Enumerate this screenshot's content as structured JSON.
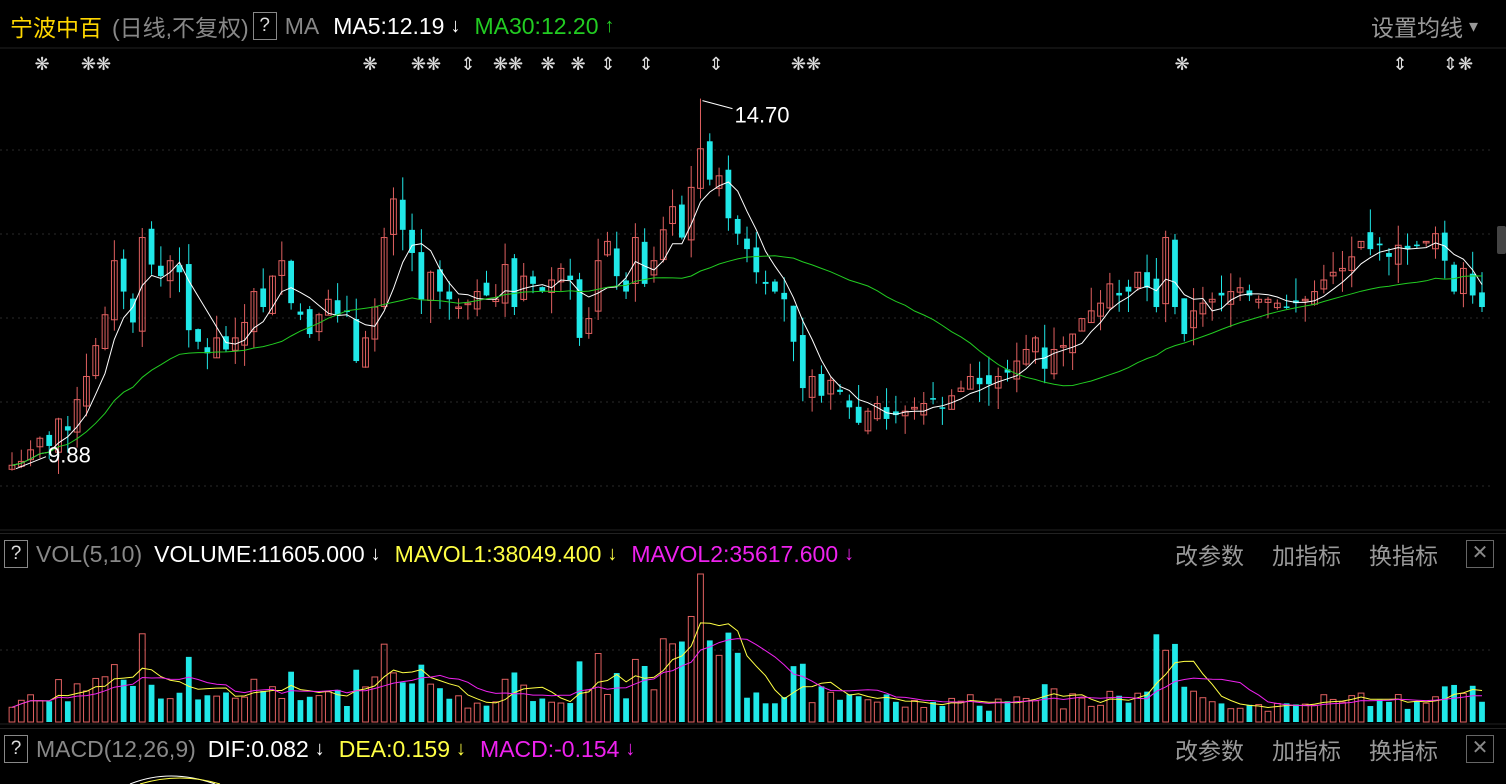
{
  "header": {
    "stock_name": "宁波中百",
    "period": "(日线,不复权)",
    "help": "?",
    "ma_label": "MA",
    "ma5_label": "MA5:12.19",
    "ma5_arrow": "↓",
    "ma30_label": "MA30:12.20",
    "ma30_arrow": "↑",
    "settings": "设置均线",
    "settings_caret": "▾"
  },
  "vol_panel": {
    "help": "?",
    "name": "VOL(5,10)",
    "volume": "VOLUME:11605.000",
    "volume_arrow": "↓",
    "mavol1": "MAVOL1:38049.400",
    "mavol1_arrow": "↓",
    "mavol2": "MAVOL2:35617.600",
    "mavol2_arrow": "↓",
    "btn_params": "改参数",
    "btn_add": "加指标",
    "btn_switch": "换指标",
    "close": "✕"
  },
  "macd_panel": {
    "help": "?",
    "name": "MACD(12,26,9)",
    "dif": "DIF:0.082",
    "dif_arrow": "↓",
    "dea": "DEA:0.159",
    "dea_arrow": "↓",
    "macd": "MACD:-0.154",
    "macd_arrow": "↓",
    "btn_params": "改参数",
    "btn_add": "加指标",
    "btn_switch": "换指标",
    "close": "✕"
  },
  "colors": {
    "up": "#e06060",
    "down": "#20e8e8",
    "ma5": "#ffffff",
    "ma30": "#22cc22",
    "mavol1": "#ffff44",
    "mavol2": "#ee22ee",
    "grid": "#2a2a2a"
  },
  "chart_data": {
    "type": "candlestick",
    "price_range": [
      9.5,
      15.2
    ],
    "high_label": "14.70",
    "low_label": "9.88",
    "closes": [
      9.95,
      10.0,
      10.15,
      10.3,
      10.2,
      10.55,
      10.4,
      10.8,
      11.1,
      11.5,
      11.9,
      12.6,
      12.2,
      11.8,
      12.9,
      12.55,
      12.4,
      12.6,
      12.45,
      11.7,
      11.55,
      11.4,
      11.6,
      11.45,
      11.6,
      11.8,
      12.2,
      12.0,
      12.4,
      12.6,
      12.05,
      11.9,
      11.65,
      11.9,
      12.1,
      11.9,
      11.95,
      11.3,
      11.6,
      12.0,
      12.9,
      13.4,
      13.0,
      12.7,
      12.1,
      12.45,
      12.2,
      12.1,
      12.0,
      12.05,
      12.2,
      12.15,
      12.1,
      12.55,
      12.0,
      12.4,
      12.3,
      12.2,
      12.35,
      12.5,
      12.35,
      11.6,
      11.85,
      12.6,
      12.85,
      12.4,
      12.2,
      12.9,
      12.3,
      12.6,
      13.0,
      13.3,
      12.9,
      13.55,
      14.05,
      13.65,
      13.7,
      13.15,
      12.95,
      12.75,
      12.45,
      12.3,
      12.2,
      12.1,
      11.55,
      10.95,
      11.1,
      10.85,
      11.05,
      10.9,
      10.7,
      10.5,
      10.65,
      10.75,
      10.55,
      10.6,
      10.65,
      10.7,
      10.75,
      10.8,
      10.7,
      10.85,
      10.95,
      11.1,
      11.0,
      11.0,
      11.1,
      11.15,
      11.3,
      11.45,
      11.6,
      11.2,
      11.45,
      11.5,
      11.65,
      11.85,
      11.95,
      12.05,
      12.3,
      12.15,
      12.2,
      12.45,
      12.25,
      12.0,
      12.9,
      12.0,
      11.65,
      11.95,
      12.05,
      12.1,
      12.15,
      12.2,
      12.25,
      12.15,
      12.1,
      12.1,
      12.05,
      12.0,
      12.05,
      12.1,
      12.2,
      12.35,
      12.45,
      12.5,
      12.65,
      12.85,
      12.75,
      12.8,
      12.65,
      12.8,
      12.75,
      12.8,
      12.85,
      12.95,
      12.6,
      12.2,
      12.5,
      12.15,
      12.0
    ],
    "ma5_last": 12.19,
    "ma30_last": 12.2,
    "volume_last": 11605.0,
    "mavol1_last": 38049.4,
    "mavol2_last": 35617.6,
    "dif_last": 0.082,
    "dea_last": 0.159,
    "macd_last": -0.154
  },
  "markers": [
    "❋",
    "❋❋",
    "❋",
    "❋❋",
    "⇕",
    "❋❋",
    "❋",
    "❋",
    "⇕",
    "⇕",
    "⇕",
    "❋❋",
    "❋",
    "⇕",
    "⇕❋"
  ]
}
